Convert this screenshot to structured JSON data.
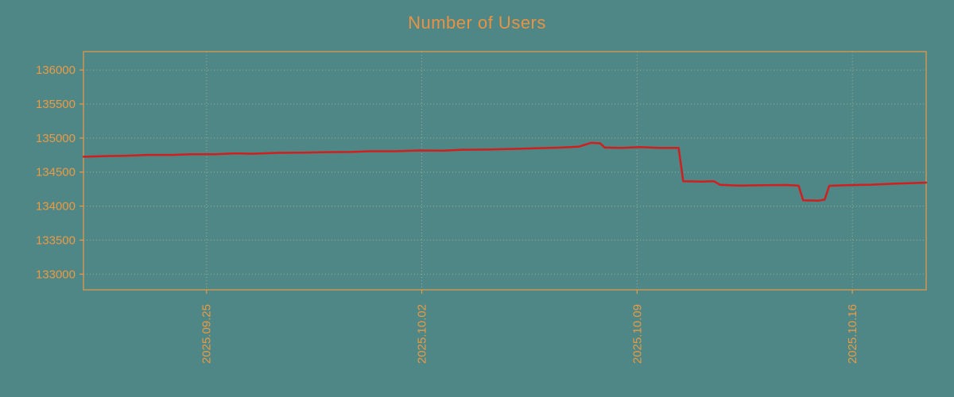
{
  "page": {
    "background": "#4e8786"
  },
  "chart_data": {
    "type": "line",
    "title": "Number of Users",
    "xlabel": "",
    "ylabel": "",
    "title_color": "#e89243",
    "axis_color": "#eb9a45",
    "grid_color": "#cfc9a0",
    "line_color": "#d11e1e",
    "grid": true,
    "legend": "none",
    "xlim": [
      0,
      27.4
    ],
    "ylim": [
      132770,
      136270
    ],
    "y_ticks": [
      133000,
      133500,
      134000,
      134500,
      135000,
      135500,
      136000
    ],
    "x_ticks": [
      {
        "pos": 4,
        "label": "2025.09.25"
      },
      {
        "pos": 11,
        "label": "2025.10.02"
      },
      {
        "pos": 18,
        "label": "2025.10.09"
      },
      {
        "pos": 25,
        "label": "2025.10.16"
      }
    ],
    "series": [
      {
        "name": "Number of Users",
        "color": "#d11e1e",
        "points": [
          [
            0,
            134725
          ],
          [
            0.7,
            134735
          ],
          [
            1.4,
            134740
          ],
          [
            2.1,
            134752
          ],
          [
            2.9,
            134752
          ],
          [
            3.5,
            134763
          ],
          [
            4.3,
            134763
          ],
          [
            4.9,
            134775
          ],
          [
            5.5,
            134770
          ],
          [
            6.3,
            134783
          ],
          [
            7.1,
            134785
          ],
          [
            7.9,
            134793
          ],
          [
            8.7,
            134795
          ],
          [
            9.3,
            134806
          ],
          [
            10.1,
            134806
          ],
          [
            10.9,
            134818
          ],
          [
            11.7,
            134815
          ],
          [
            12.3,
            134828
          ],
          [
            13.1,
            134830
          ],
          [
            13.9,
            134840
          ],
          [
            14.7,
            134850
          ],
          [
            15.5,
            134860
          ],
          [
            16.1,
            134872
          ],
          [
            16.5,
            134930
          ],
          [
            16.8,
            134922
          ],
          [
            16.95,
            134860
          ],
          [
            17.5,
            134856
          ],
          [
            18.1,
            134866
          ],
          [
            18.7,
            134856
          ],
          [
            19.35,
            134856
          ],
          [
            19.5,
            134365
          ],
          [
            20.1,
            134360
          ],
          [
            20.5,
            134365
          ],
          [
            20.7,
            134312
          ],
          [
            21.3,
            134302
          ],
          [
            22.1,
            134306
          ],
          [
            22.9,
            134310
          ],
          [
            23.25,
            134300
          ],
          [
            23.4,
            134085
          ],
          [
            23.9,
            134080
          ],
          [
            24.1,
            134095
          ],
          [
            24.25,
            134298
          ],
          [
            24.8,
            134308
          ],
          [
            25.6,
            134315
          ],
          [
            26.4,
            134330
          ],
          [
            27.4,
            134345
          ]
        ]
      }
    ]
  }
}
